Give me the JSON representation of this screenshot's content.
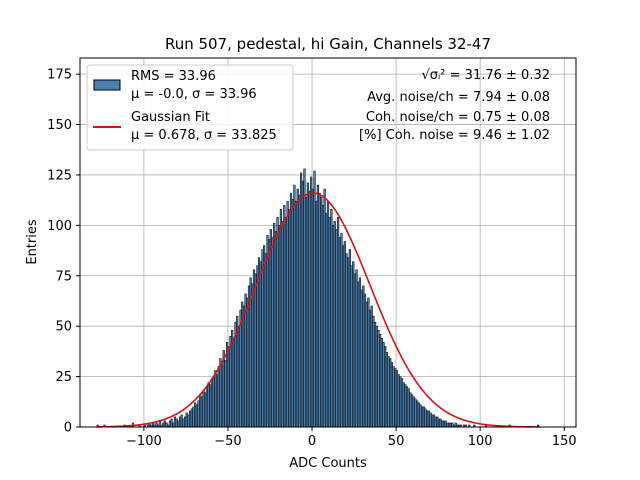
{
  "chart_data": {
    "type": "bar",
    "title": "Run 507, pedestal, hi Gain, Channels 32-47",
    "xlabel": "ADC Counts",
    "ylabel": "Entries",
    "xlim": [
      -138,
      157
    ],
    "ylim": [
      0,
      183
    ],
    "xticks": [
      -100,
      -50,
      0,
      50,
      100,
      150
    ],
    "yticks": [
      0,
      25,
      50,
      75,
      100,
      125,
      150,
      175
    ],
    "grid": true,
    "legend_position": "top-left",
    "histogram": {
      "legend_lines": [
        "RMS = 33.96",
        "μ = -0.0, σ = 33.96"
      ],
      "bin_width": 1,
      "bin_start": -128,
      "bar_color": "#4a7fb0",
      "edge_color": "#000000",
      "counts": [
        1,
        0,
        0,
        0,
        1,
        0,
        0,
        0,
        0,
        0,
        0,
        0,
        0,
        0,
        0,
        0,
        1,
        0,
        0,
        0,
        0,
        2,
        0,
        0,
        0,
        1,
        0,
        0,
        1,
        0,
        1,
        2,
        1,
        2,
        1,
        2,
        1,
        3,
        1,
        2,
        3,
        2,
        1,
        3,
        4,
        2,
        5,
        4,
        3,
        5,
        6,
        4,
        5,
        7,
        6,
        8,
        9,
        10,
        12,
        11,
        13,
        16,
        15,
        18,
        17,
        20,
        22,
        21,
        24,
        25,
        28,
        26,
        30,
        34,
        31,
        38,
        33,
        42,
        40,
        45,
        48,
        44,
        52,
        55,
        50,
        58,
        62,
        60,
        66,
        64,
        70,
        74,
        71,
        78,
        76,
        80,
        84,
        82,
        88,
        90,
        86,
        95,
        93,
        98,
        94,
        101,
        97,
        104,
        100,
        108,
        102,
        110,
        104,
        112,
        108,
        116,
        113,
        120,
        112,
        118,
        115,
        126,
        122,
        128,
        114,
        121,
        117,
        124,
        118,
        127,
        112,
        120,
        116,
        114,
        110,
        118,
        106,
        112,
        104,
        108,
        100,
        102,
        98,
        104,
        94,
        96,
        90,
        92,
        86,
        84,
        88,
        80,
        82,
        76,
        78,
        72,
        74,
        68,
        70,
        66,
        62,
        64,
        58,
        60,
        55,
        52,
        50,
        48,
        46,
        44,
        42,
        40,
        37,
        35,
        34,
        32,
        30,
        29,
        28,
        26,
        25,
        24,
        22,
        21,
        20,
        19,
        17,
        16,
        15,
        14,
        13,
        12,
        11,
        10,
        10,
        9,
        8,
        8,
        7,
        6,
        6,
        5,
        5,
        4,
        4,
        3,
        3,
        3,
        2,
        2,
        2,
        2,
        1,
        2,
        1,
        1,
        1,
        0,
        1,
        1,
        0,
        1,
        0,
        0,
        1,
        0,
        0,
        0,
        0,
        0,
        0,
        1,
        0,
        0,
        0,
        0,
        0,
        0,
        0,
        0,
        0,
        0,
        0,
        0,
        0,
        1,
        0,
        0,
        0,
        0,
        0,
        0,
        0,
        0,
        0,
        0,
        0,
        0,
        0,
        0,
        0,
        0,
        1
      ]
    },
    "fit": {
      "type": "gaussian",
      "legend_lines": [
        "Gaussian Fit",
        "μ = 0.678, σ = 33.825"
      ],
      "mu": 0.678,
      "sigma": 33.825,
      "amplitude": 116,
      "color": "#dd1111"
    },
    "annotations": [
      {
        "prefix": "√σᵢ²",
        "value": " = 31.76 ± 0.32"
      },
      {
        "prefix": "",
        "value": "Avg. noise/ch = 7.94 ± 0.08"
      },
      {
        "prefix": "",
        "value": "Coh. noise/ch = 0.75 ± 0.08"
      },
      {
        "prefix": "",
        "value": "[%] Coh. noise = 9.46 ± 1.02"
      }
    ]
  }
}
